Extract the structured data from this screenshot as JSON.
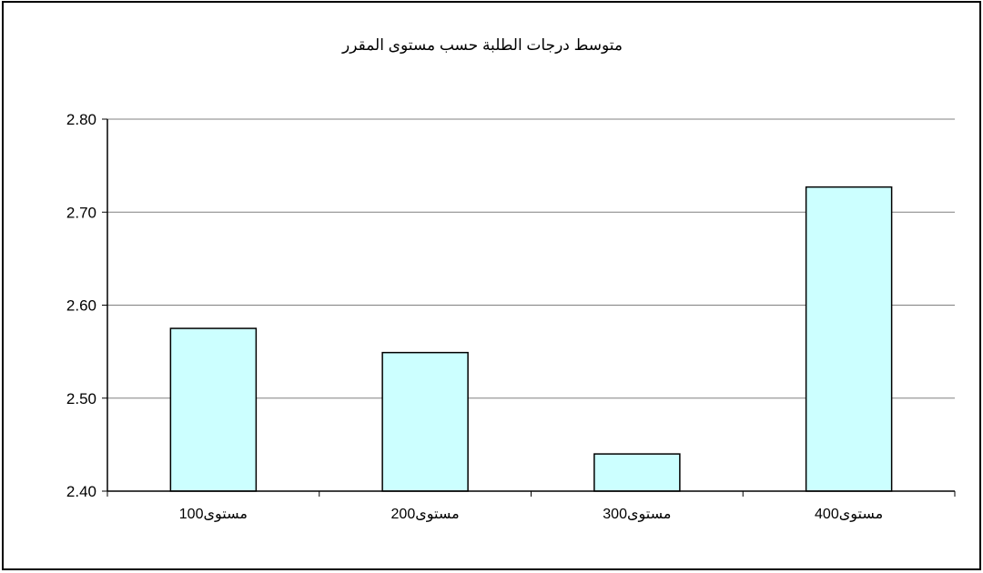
{
  "chart_data": {
    "type": "bar",
    "title": "متوسط درجات الطلبة حسب مستوى المقرر",
    "xlabel": "",
    "ylabel": "",
    "categories": [
      "مستوى100",
      "مستوى200",
      "مستوى300",
      "مستوى400"
    ],
    "values": [
      2.575,
      2.549,
      2.44,
      2.727
    ],
    "ylim": [
      2.4,
      2.8
    ],
    "yticks": [
      "2.40",
      "2.50",
      "2.60",
      "2.70",
      "2.80"
    ],
    "ytick_values": [
      2.4,
      2.5,
      2.6,
      2.7,
      2.8
    ],
    "grid": true,
    "legend": "none",
    "colors": {
      "bar_fill": "#ccffff",
      "bar_stroke": "#000000",
      "gridline": "#808080",
      "axis": "#000000",
      "text": "#000000"
    }
  }
}
